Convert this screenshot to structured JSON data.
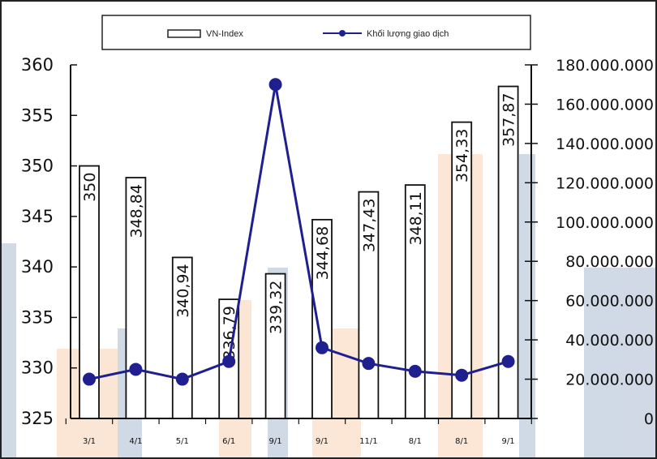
{
  "chart_data": {
    "type": "bar",
    "categories": [
      "3/1",
      "4/1",
      "5/1",
      "6/1",
      "9/1",
      "9/1",
      "11/1",
      "8/1",
      "8/1",
      "9/1"
    ],
    "series": [
      {
        "name": "VN-Index",
        "kind": "bar",
        "axis": "left",
        "values": [
          350,
          348.84,
          340.94,
          336.79,
          339.32,
          344.68,
          347.43,
          348.11,
          354.33,
          357.87
        ],
        "labels": [
          "350",
          "348,84",
          "340,94",
          "336,79",
          "339,32",
          "344,68",
          "347,43",
          "348,11",
          "354,33",
          "357,87"
        ]
      },
      {
        "name": "Khối lượng giao dịch",
        "kind": "line",
        "axis": "right",
        "values": [
          20000000,
          25000000,
          20000000,
          29000000,
          170000000,
          36000000,
          28000000,
          24000000,
          22000000,
          29000000
        ]
      }
    ],
    "y_left": {
      "range": [
        325,
        360
      ],
      "ticks": [
        "325",
        "330",
        "335",
        "340",
        "345",
        "350",
        "355",
        "360"
      ]
    },
    "y_right": {
      "range": [
        0,
        180000000
      ],
      "ticks": [
        "0",
        "20.000.000",
        "40.000.000",
        "60.000.000",
        "80.000.000",
        "100.000.000",
        "120.000.000",
        "140.000.000",
        "160.000.000",
        "180.000.000"
      ]
    },
    "legend_position": "top-center",
    "grid": false,
    "colors": {
      "bar_fill": "#ffffff",
      "bar_stroke": "#111111",
      "line": "#1f1f8f",
      "marker": "#1f1f8f"
    }
  },
  "legend": {
    "bar_label": "VN-Index",
    "line_label": "Khối lượng giao dịch"
  }
}
